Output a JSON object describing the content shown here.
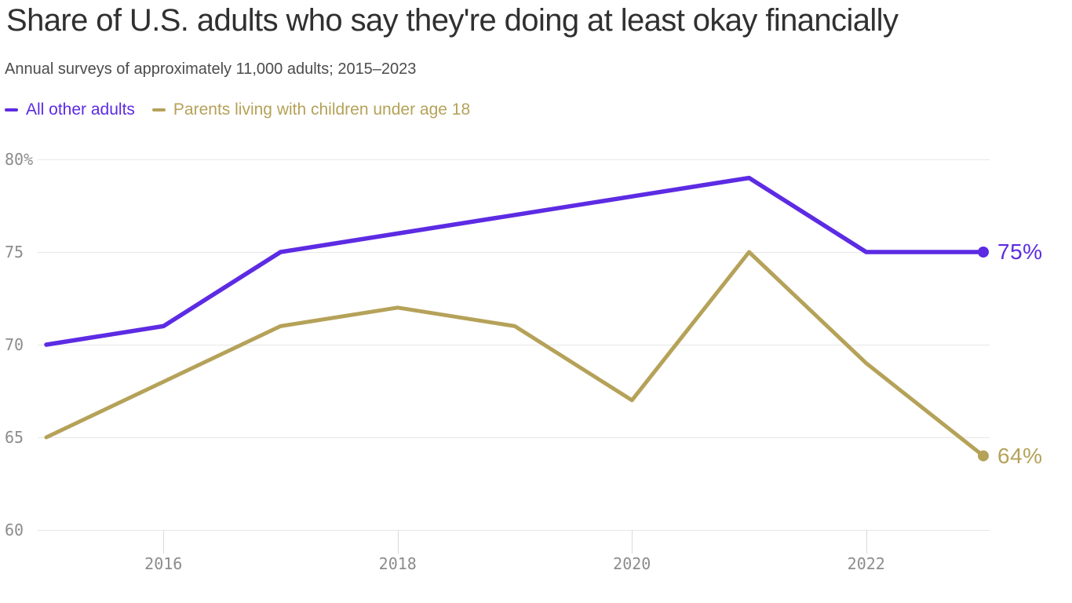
{
  "chart_data": {
    "type": "line",
    "title": "Share of U.S. adults who say they're doing at least okay financially",
    "subtitle": "Annual surveys of approximately 11,000 adults; 2015–2023",
    "x": [
      2015,
      2016,
      2017,
      2018,
      2019,
      2020,
      2021,
      2022,
      2023
    ],
    "series": [
      {
        "name": "All other adults",
        "color": "#5c2be3",
        "values": [
          70,
          71,
          75,
          76,
          77,
          78,
          79,
          75,
          75
        ],
        "end_label": "75%"
      },
      {
        "name": "Parents living with children under age 18",
        "color": "#b5a259",
        "values": [
          65,
          68,
          71,
          72,
          71,
          67,
          75,
          69,
          64
        ],
        "end_label": "64%"
      }
    ],
    "ylim": [
      60,
      80
    ],
    "yticks": [
      80,
      75,
      70,
      65,
      60
    ],
    "ytick_labels": [
      "80%",
      "75",
      "70",
      "65",
      "60"
    ],
    "xticks": [
      2016,
      2018,
      2020,
      2022
    ],
    "xtick_labels": [
      "2016",
      "2018",
      "2020",
      "2022"
    ],
    "grid": "horizontal",
    "legend_position": "top-left"
  },
  "colors": {
    "background": "#ffffff",
    "title_text": "#303030",
    "subtitle_text": "#4c4c4c",
    "axis_text": "#8c8c8c",
    "gridline": "#e7e7e7",
    "tick": "#dadada"
  }
}
